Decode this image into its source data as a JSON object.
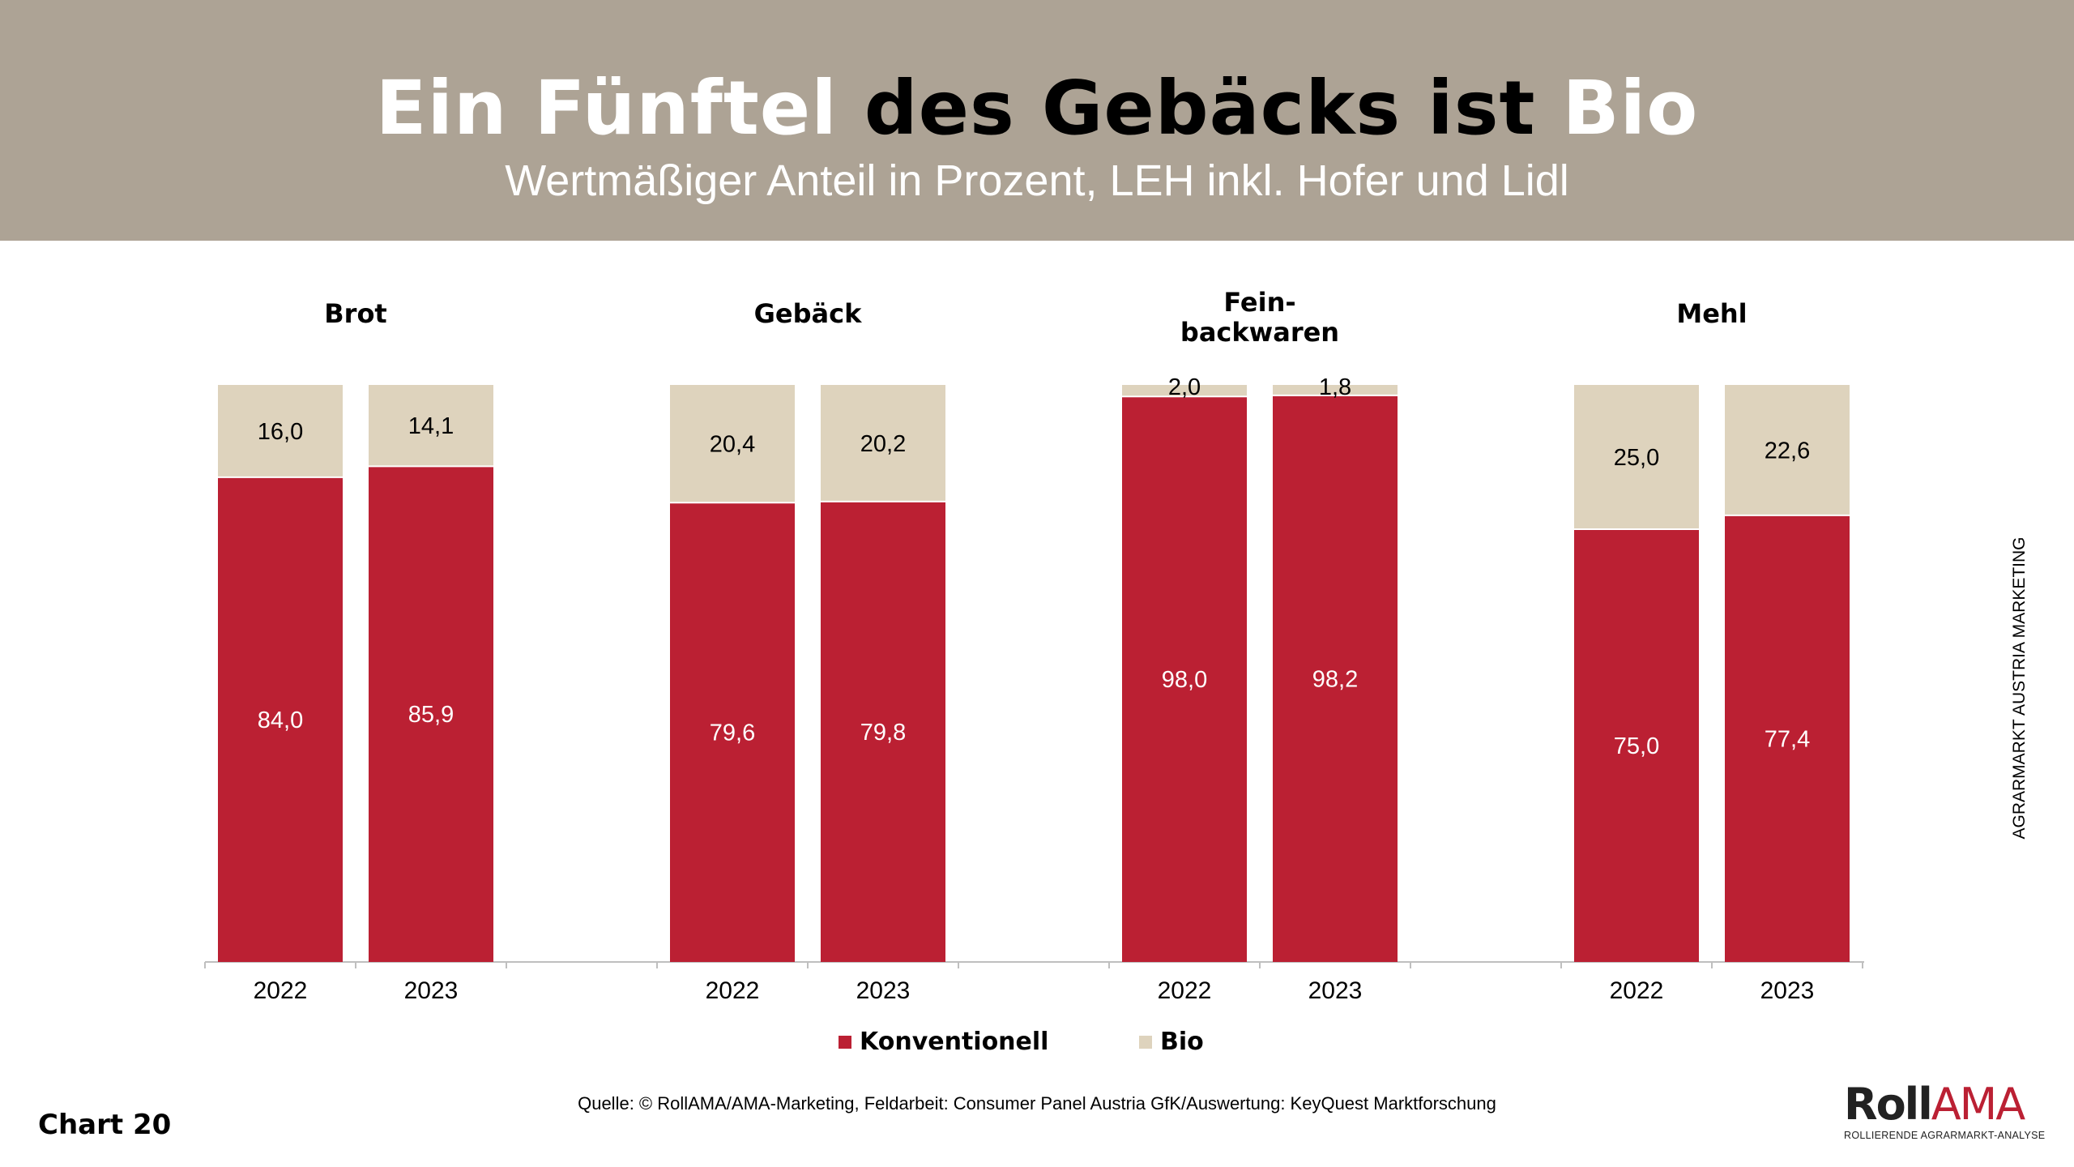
{
  "header": {
    "title_part1": "Ein Fünftel",
    "title_part2": "des Gebäcks ist",
    "title_part3": "Bio",
    "subtitle": "Wertmäßiger Anteil in Prozent, LEH inkl. Hofer und Lidl"
  },
  "chart_data": {
    "type": "bar",
    "stacked": true,
    "groups": [
      {
        "label": "Brot",
        "label_lines": [
          "Brot"
        ],
        "categories": [
          "2022",
          "2023"
        ],
        "Konventionell": [
          84.0,
          85.9
        ],
        "Bio": [
          16.0,
          14.1
        ],
        "labels_konv": [
          "84,0",
          "85,9"
        ],
        "labels_bio": [
          "16,0",
          "14,1"
        ]
      },
      {
        "label": "Gebäck",
        "label_lines": [
          "Gebäck"
        ],
        "categories": [
          "2022",
          "2023"
        ],
        "Konventionell": [
          79.6,
          79.8
        ],
        "Bio": [
          20.4,
          20.2
        ],
        "labels_konv": [
          "79,6",
          "79,8"
        ],
        "labels_bio": [
          "20,4",
          "20,2"
        ]
      },
      {
        "label": "Fein-backwaren",
        "label_lines": [
          "Fein-",
          "backwaren"
        ],
        "categories": [
          "2022",
          "2023"
        ],
        "Konventionell": [
          98.0,
          98.2
        ],
        "Bio": [
          2.0,
          1.8
        ],
        "labels_konv": [
          "98,0",
          "98,2"
        ],
        "labels_bio": [
          "2,0",
          "1,8"
        ]
      },
      {
        "label": "Mehl",
        "label_lines": [
          "Mehl"
        ],
        "categories": [
          "2022",
          "2023"
        ],
        "Konventionell": [
          75.0,
          77.4
        ],
        "Bio": [
          25.0,
          22.6
        ],
        "labels_konv": [
          "75,0",
          "77,4"
        ],
        "labels_bio": [
          "25,0",
          "22,6"
        ]
      }
    ],
    "series": [
      {
        "name": "Konventionell",
        "color": "#bb2033"
      },
      {
        "name": "Bio",
        "color": "#ded3bd"
      }
    ],
    "ylim": [
      0,
      100
    ],
    "grid": false,
    "legend": "bottom"
  },
  "footer": {
    "chart_number": "Chart 20",
    "source": "Quelle: © RollAMA/AMA-Marketing, Feldarbeit: Consumer Panel Austria GfK/Auswertung: KeyQuest Marktforschung",
    "side_text": "AGRARMARKT AUSTRIA MARKETING",
    "logo_text": "RollAMA",
    "logo_tagline": "ROLLIERENDE AGRARMARKT-ANALYSE"
  }
}
